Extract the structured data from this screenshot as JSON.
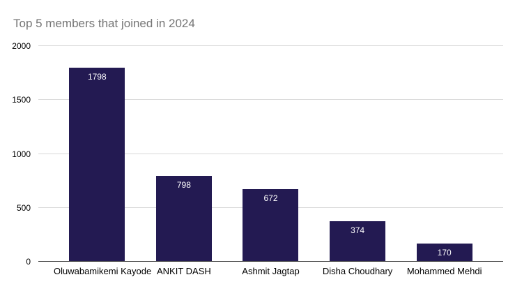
{
  "chart_data": {
    "type": "bar",
    "title": "Top 5 members that joined in 2024",
    "categories": [
      "Oluwabamikemi Kayode",
      "ANKIT DASH",
      "Ashmit Jagtap",
      "Disha Choudhary",
      "Mohammed Mehdi"
    ],
    "values": [
      1798,
      798,
      672,
      374,
      170
    ],
    "xlabel": "",
    "ylabel": "",
    "ylim": [
      0,
      2000
    ],
    "yticks": [
      0,
      500,
      1000,
      1500,
      2000
    ],
    "grid": true,
    "legend": "none",
    "value_labels_shown": true,
    "colors": {
      "bar": "#231a52",
      "title": "#757575",
      "axis_text": "#000000",
      "gridline": "#d9d9d9",
      "baseline": "#333333",
      "value_label": "#ffffff",
      "background": "#ffffff"
    }
  }
}
